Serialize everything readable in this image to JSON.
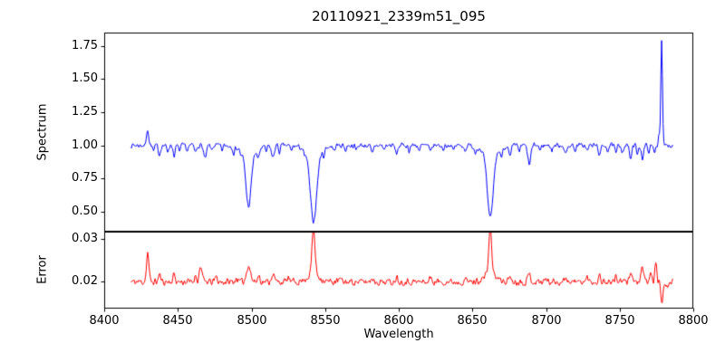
{
  "chart_data": {
    "type": "line",
    "title": "20110921_2339m51_095",
    "xlabel": "Wavelength",
    "xlim": [
      8400,
      8800
    ],
    "x_ticks": [
      8400,
      8450,
      8500,
      8550,
      8600,
      8650,
      8700,
      8750,
      8800
    ],
    "x_tick_labels": [
      "8400",
      "8450",
      "8500",
      "8550",
      "8600",
      "8650",
      "8700",
      "8750",
      "8800"
    ],
    "grid": false,
    "legend": "none",
    "panels": [
      {
        "name": "spectrum",
        "ylabel": "Spectrum",
        "ylim": [
          0.35,
          1.85
        ],
        "y_ticks": [
          0.5,
          0.75,
          1.0,
          1.25,
          1.5,
          1.75
        ],
        "y_tick_labels": [
          "0.50",
          "0.75",
          "1.00",
          "1.25",
          "1.50",
          "1.75"
        ],
        "line_color": "#0000ff",
        "key_points": {
          "continuum_level": 1.0,
          "absorption_minima": [
            {
              "x": 8498,
              "y": 0.54
            },
            {
              "x": 8542,
              "y": 0.42
            },
            {
              "x": 8662,
              "y": 0.45
            },
            {
              "x": 8689,
              "y": 0.84
            }
          ],
          "emission_peaks": [
            {
              "x": 8430,
              "y": 1.13
            },
            {
              "x": 8778,
              "y": 1.78
            }
          ]
        },
        "series": {
          "x_start": 8418,
          "x_end": 8786,
          "step": 0.5,
          "baseline": 1.0,
          "noise_amplitude": 0.018,
          "noise_seed": 7,
          "features": [
            [
              8429.5,
              0.125,
              0.7
            ],
            [
              8433.5,
              -0.045,
              0.6
            ],
            [
              8437.5,
              -0.07,
              0.7
            ],
            [
              8443,
              -0.05,
              0.6
            ],
            [
              8447.5,
              -0.075,
              0.7
            ],
            [
              8451,
              -0.04,
              0.6
            ],
            [
              8456,
              -0.05,
              0.6
            ],
            [
              8462,
              -0.055,
              0.7
            ],
            [
              8468.5,
              -0.105,
              0.9
            ],
            [
              8473,
              -0.04,
              0.6
            ],
            [
              8480,
              -0.035,
              0.6
            ],
            [
              8488,
              -0.045,
              0.6
            ],
            [
              8493,
              -0.04,
              0.6
            ],
            [
              8498.0,
              -0.41,
              1.8
            ],
            [
              8498.0,
              -0.05,
              6
            ],
            [
              8504.5,
              -0.075,
              0.8
            ],
            [
              8510,
              -0.04,
              0.6
            ],
            [
              8514.5,
              -0.095,
              0.9
            ],
            [
              8519,
              -0.05,
              0.6
            ],
            [
              8527,
              -0.04,
              0.6
            ],
            [
              8536,
              -0.045,
              0.6
            ],
            [
              8542.1,
              -0.52,
              2.2
            ],
            [
              8542.1,
              -0.05,
              6
            ],
            [
              8549,
              -0.05,
              0.7
            ],
            [
              8556,
              -0.04,
              0.6
            ],
            [
              8564,
              -0.04,
              0.6
            ],
            [
              8571,
              -0.035,
              0.6
            ],
            [
              8582,
              -0.065,
              0.8
            ],
            [
              8590,
              -0.035,
              0.6
            ],
            [
              8598.5,
              -0.065,
              0.8
            ],
            [
              8607,
              -0.04,
              0.6
            ],
            [
              8614,
              -0.04,
              0.6
            ],
            [
              8621.5,
              -0.055,
              0.7
            ],
            [
              8630,
              -0.035,
              0.6
            ],
            [
              8637,
              -0.04,
              0.6
            ],
            [
              8645,
              -0.04,
              0.6
            ],
            [
              8652,
              -0.045,
              0.6
            ],
            [
              8662.1,
              -0.5,
              2.0
            ],
            [
              8662.1,
              -0.05,
              6
            ],
            [
              8669.5,
              -0.065,
              0.7
            ],
            [
              8675.5,
              -0.085,
              0.8
            ],
            [
              8682,
              -0.045,
              0.6
            ],
            [
              8688.6,
              -0.145,
              1.0
            ],
            [
              8696,
              -0.04,
              0.6
            ],
            [
              8704,
              -0.04,
              0.6
            ],
            [
              8713.5,
              -0.07,
              0.8
            ],
            [
              8720,
              -0.04,
              0.6
            ],
            [
              8728,
              -0.045,
              0.6
            ],
            [
              8736.5,
              -0.075,
              0.8
            ],
            [
              8742,
              -0.04,
              0.6
            ],
            [
              8747.5,
              -0.06,
              0.7
            ],
            [
              8752,
              -0.05,
              0.6
            ],
            [
              8757.5,
              -0.1,
              0.8
            ],
            [
              8762,
              -0.06,
              0.6
            ],
            [
              8765.5,
              -0.095,
              0.8
            ],
            [
              8770,
              -0.05,
              0.6
            ],
            [
              8773.5,
              -0.055,
              0.6
            ],
            [
              8776.8,
              0.09,
              0.5
            ],
            [
              8778.5,
              0.78,
              0.55
            ]
          ]
        }
      },
      {
        "name": "error",
        "ylabel": "Error",
        "ylim": [
          0.0137,
          0.0318
        ],
        "y_ticks": [
          0.02,
          0.03
        ],
        "y_tick_labels": [
          "0.02",
          "0.03"
        ],
        "line_color": "#ff0000",
        "key_points": {
          "baseline_level": 0.02,
          "peaks": [
            {
              "x": 8430,
              "y": 0.027
            },
            {
              "x": 8542,
              "y": 0.031
            },
            {
              "x": 8662,
              "y": 0.031
            },
            {
              "x": 8775,
              "y": 0.024
            }
          ],
          "dips": [
            {
              "x": 8779,
              "y": 0.0145
            }
          ]
        },
        "series": {
          "x_start": 8418,
          "x_end": 8786,
          "step": 0.5,
          "baseline": 0.02,
          "noise_amplitude": 0.0008,
          "noise_seed": 11,
          "features": [
            [
              8429.5,
              0.0068,
              0.8
            ],
            [
              8437.5,
              0.0018,
              0.7
            ],
            [
              8447.5,
              0.0018,
              0.7
            ],
            [
              8462,
              0.0015,
              0.7
            ],
            [
              8465.5,
              0.0038,
              0.9
            ],
            [
              8476,
              0.0012,
              0.7
            ],
            [
              8490,
              0.001,
              0.7
            ],
            [
              8498.0,
              0.004,
              1.3
            ],
            [
              8505,
              0.0015,
              0.8
            ],
            [
              8514.5,
              0.002,
              0.9
            ],
            [
              8525,
              0.001,
              0.7
            ],
            [
              8542.1,
              0.0108,
              1.0
            ],
            [
              8542.1,
              0.0018,
              4
            ],
            [
              8560,
              0.0008,
              0.7
            ],
            [
              8582,
              0.001,
              0.8
            ],
            [
              8598.5,
              0.0012,
              0.8
            ],
            [
              8621.5,
              0.001,
              0.7
            ],
            [
              8645,
              0.0008,
              0.7
            ],
            [
              8662.1,
              0.0108,
              1.0
            ],
            [
              8662.1,
              0.0018,
              4
            ],
            [
              8675.5,
              0.0014,
              0.8
            ],
            [
              8688.6,
              0.0018,
              0.9
            ],
            [
              8700,
              0.0008,
              0.7
            ],
            [
              8713.5,
              0.0012,
              0.8
            ],
            [
              8728,
              0.001,
              0.7
            ],
            [
              8736.5,
              0.0014,
              0.8
            ],
            [
              8747.5,
              0.0014,
              0.7
            ],
            [
              8757.5,
              0.0028,
              0.8
            ],
            [
              8765.5,
              0.0032,
              0.8
            ],
            [
              8771,
              0.002,
              0.7
            ],
            [
              8774.5,
              0.0042,
              0.7
            ],
            [
              8778.8,
              -0.0055,
              0.7
            ],
            [
              8783,
              -0.0012,
              0.8
            ]
          ]
        }
      }
    ]
  }
}
